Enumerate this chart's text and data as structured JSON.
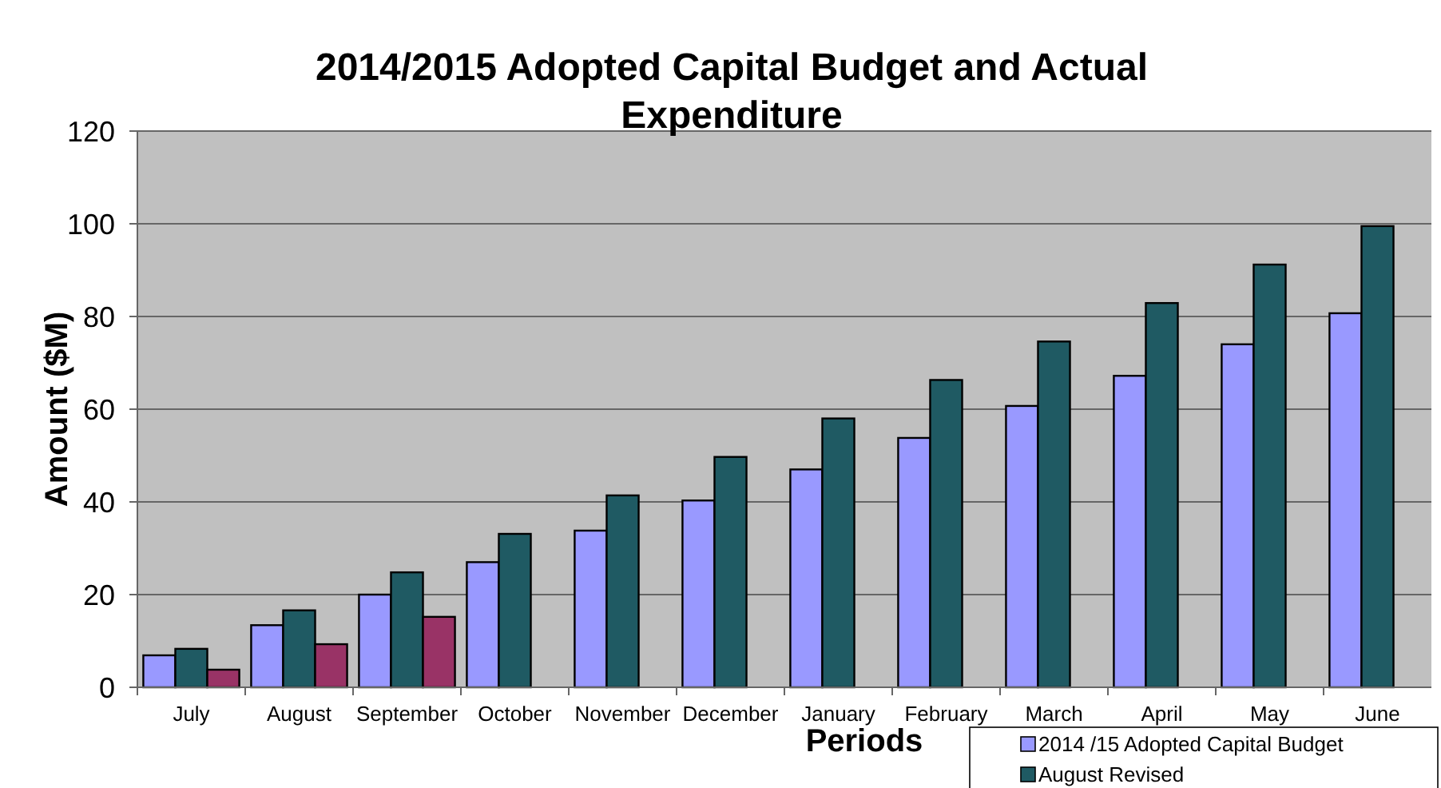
{
  "chart_data": {
    "type": "bar",
    "title": "2014/2015 Adopted Capital Budget and Actual Expenditure",
    "xlabel": "Periods",
    "ylabel": "Amount ($M)",
    "categories": [
      "July",
      "August",
      "September",
      "October",
      "November",
      "December",
      "January",
      "February",
      "March",
      "April",
      "May",
      "June"
    ],
    "series": [
      {
        "name": "2014 /15 Adopted Capital Budget",
        "color": "#9999ff",
        "values": [
          6.9,
          13.4,
          20,
          27,
          33.8,
          40.3,
          47,
          53.8,
          60.7,
          67.2,
          74,
          80.7
        ]
      },
      {
        "name": "August Revised",
        "color": "#1f5a63",
        "values": [
          8.3,
          16.6,
          24.8,
          33.1,
          41.4,
          49.7,
          58,
          66.3,
          74.6,
          82.9,
          91.2,
          99.5
        ]
      },
      {
        "color": "#993366",
        "values": [
          3.8,
          9.3,
          15.2,
          null,
          null,
          null,
          null,
          null,
          null,
          null,
          null,
          null
        ]
      }
    ],
    "ylim": [
      0,
      120
    ],
    "yticks": [
      0,
      20,
      40,
      60,
      80,
      100,
      120
    ],
    "grid": "y",
    "legend": "bottom right"
  }
}
